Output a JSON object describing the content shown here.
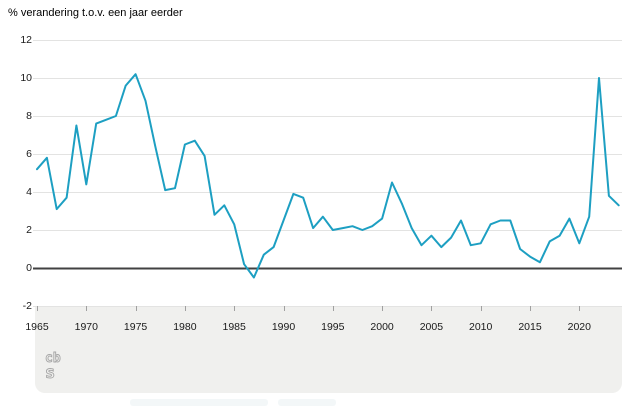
{
  "title": "% verandering t.o.v. een jaar eerder",
  "logo": {
    "name": "cbs-logo",
    "text_top": "cb",
    "text_bottom": "s"
  },
  "chart_data": {
    "type": "line",
    "title": "% verandering t.o.v. een jaar eerder",
    "xlabel": "",
    "ylabel": "% verandering t.o.v. een jaar eerder",
    "xlim": [
      1965,
      2024
    ],
    "ylim": [
      -2,
      12
    ],
    "grid": true,
    "legend_position": "none",
    "x": [
      1965,
      1966,
      1967,
      1968,
      1969,
      1970,
      1971,
      1972,
      1973,
      1974,
      1975,
      1976,
      1977,
      1978,
      1979,
      1980,
      1981,
      1982,
      1983,
      1984,
      1985,
      1986,
      1987,
      1988,
      1989,
      1990,
      1991,
      1992,
      1993,
      1994,
      1995,
      1996,
      1997,
      1998,
      1999,
      2000,
      2001,
      2002,
      2003,
      2004,
      2005,
      2006,
      2007,
      2008,
      2009,
      2010,
      2011,
      2012,
      2013,
      2014,
      2015,
      2016,
      2017,
      2018,
      2019,
      2020,
      2021,
      2022,
      2023,
      2024
    ],
    "values": [
      5.2,
      5.8,
      3.1,
      3.7,
      7.5,
      4.4,
      7.6,
      7.8,
      8.0,
      9.6,
      10.2,
      8.8,
      6.4,
      4.1,
      4.2,
      6.5,
      6.7,
      5.9,
      2.8,
      3.3,
      2.3,
      0.2,
      -0.5,
      0.7,
      1.1,
      2.5,
      3.9,
      3.7,
      2.1,
      2.7,
      2.0,
      2.1,
      2.2,
      2.0,
      2.2,
      2.6,
      4.5,
      3.4,
      2.1,
      1.2,
      1.7,
      1.1,
      1.6,
      2.5,
      1.2,
      1.3,
      2.3,
      2.5,
      2.5,
      1.0,
      0.6,
      0.3,
      1.4,
      1.7,
      2.6,
      1.3,
      2.7,
      10.0,
      3.8,
      3.3
    ],
    "xticks": [
      1965,
      1970,
      1975,
      1980,
      1985,
      1990,
      1995,
      2000,
      2005,
      2010,
      2015,
      2020
    ],
    "xtick_labels": [
      "1965",
      "1970",
      "1975",
      "1980",
      "1985",
      "1990",
      "1995",
      "2000",
      "2005",
      "2010",
      "2015",
      "2020"
    ],
    "yticks": [
      12,
      10,
      8,
      6,
      4,
      2,
      0,
      -2
    ],
    "ytick_labels": [
      "12",
      "10",
      "8",
      "6",
      "4",
      "2",
      "0",
      "-2"
    ],
    "line_color": "#1d9fc2",
    "grid_color": "#e3e3e2",
    "zero_line_color": "#414142",
    "tick_color": "#a0a0a0",
    "footer_bg": "#f0f0ee"
  }
}
